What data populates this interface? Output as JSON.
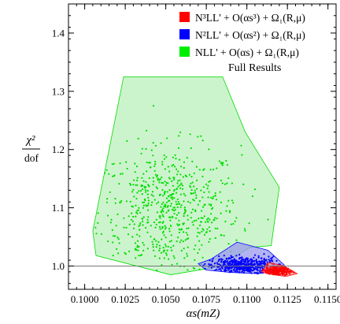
{
  "chart_data": {
    "type": "scatter",
    "xlabel": "αs(mZ)",
    "ylabel_numerator": "χ²",
    "ylabel_denominator": "dof",
    "xlim": [
      0.099,
      0.1155
    ],
    "ylim": [
      0.96,
      1.45
    ],
    "x_ticks": [
      0.1,
      0.1025,
      0.105,
      0.1075,
      0.11,
      0.1125,
      0.115
    ],
    "x_tick_labels": [
      "0.1000",
      "0.1025",
      "0.1050",
      "0.1075",
      "0.1100",
      "0.1125",
      "0.1150"
    ],
    "y_ticks": [
      1.0,
      1.1,
      1.2,
      1.3,
      1.4
    ],
    "y_tick_labels": [
      "1.0",
      "1.1",
      "1.2",
      "1.3",
      "1.4"
    ],
    "reference_line_y": 1.0,
    "legend_placement": "top-right",
    "legend_subtitle": "Full Results",
    "series": [
      {
        "name": "N³LL' + O(αs³) + Ω₁(R,μ)",
        "color": "#ff0000",
        "fill": "#ff9999",
        "hull": [
          [
            0.1111,
            0.998
          ],
          [
            0.1113,
            1.006
          ],
          [
            0.1122,
            1.001
          ],
          [
            0.1128,
            0.992
          ],
          [
            0.1131,
            0.987
          ],
          [
            0.1124,
            0.982
          ],
          [
            0.1114,
            0.986
          ],
          [
            0.1109,
            0.99
          ]
        ],
        "center": [
          0.1119,
          0.992
        ],
        "spread": [
          0.00055,
          0.0045
        ],
        "count": 220
      },
      {
        "name": "N²LL' + O(αs²) + Ω₁(R,μ)",
        "color": "#0000ff",
        "fill": "#9999ee",
        "hull": [
          [
            0.1078,
            1.012
          ],
          [
            0.1094,
            1.041
          ],
          [
            0.1113,
            1.027
          ],
          [
            0.1123,
            1.002
          ],
          [
            0.1124,
            0.993
          ],
          [
            0.1107,
            0.987
          ],
          [
            0.109,
            0.989
          ],
          [
            0.1075,
            0.993
          ],
          [
            0.107,
            1.004
          ]
        ],
        "center": [
          0.1098,
          1.0
        ],
        "spread": [
          0.0011,
          0.008
        ],
        "count": 520
      },
      {
        "name": "NLL' + O(αs) + Ω₁(R,μ)",
        "color": "#00dd00",
        "fill": "#bbf0bb",
        "hull": [
          [
            0.1005,
            1.06
          ],
          [
            0.1007,
            1.018
          ],
          [
            0.1053,
            0.985
          ],
          [
            0.1081,
            0.998
          ],
          [
            0.1102,
            1.032
          ],
          [
            0.1115,
            1.035
          ],
          [
            0.112,
            1.135
          ],
          [
            0.1099,
            1.23
          ],
          [
            0.1085,
            1.325
          ],
          [
            0.1024,
            1.325
          ]
        ],
        "center": [
          0.1052,
          1.095
        ],
        "spread": [
          0.0022,
          0.055
        ],
        "count": 620
      }
    ]
  }
}
